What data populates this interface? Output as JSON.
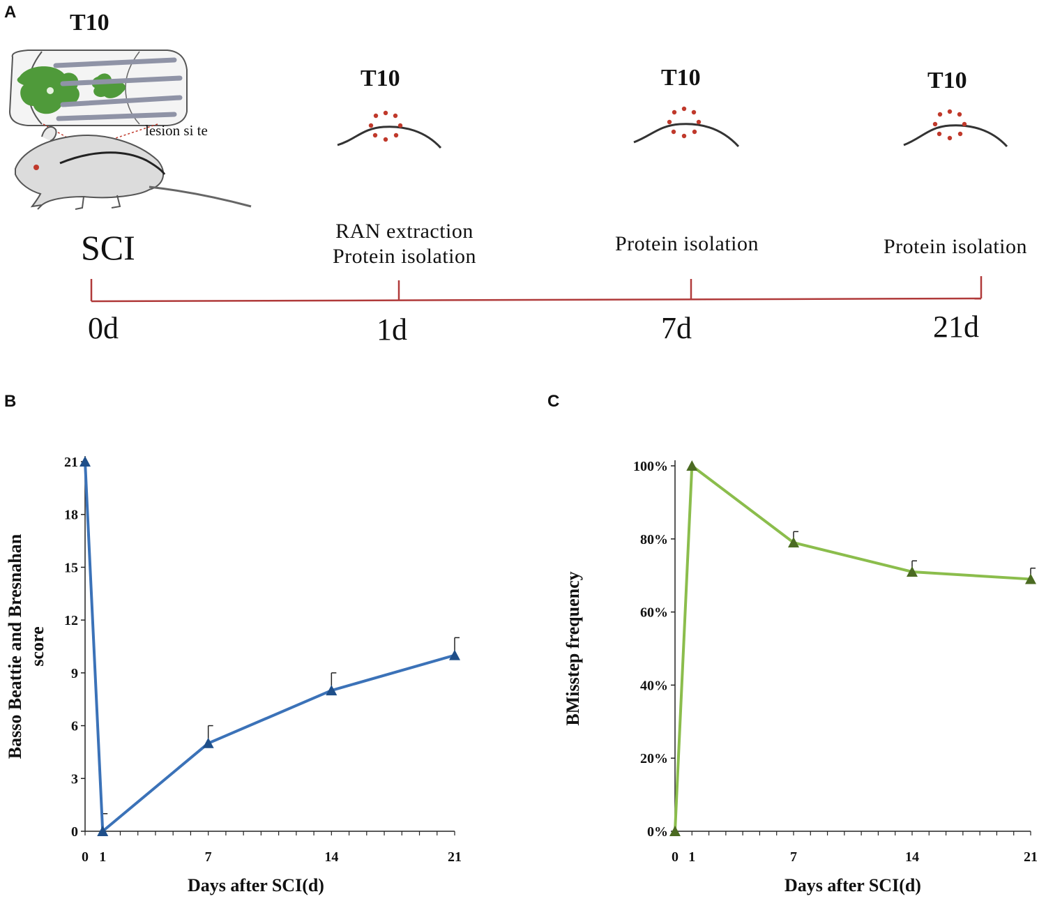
{
  "panels": {
    "a": "A",
    "b": "B",
    "c": "C"
  },
  "timeline": {
    "vertebra_label": "T10",
    "lesion_label": "lesion si te",
    "injury_label": "SCI",
    "steps": [
      {
        "day": "0d"
      },
      {
        "day": "1d",
        "line1": "RAN extraction",
        "line2": "Protein isolation"
      },
      {
        "day": "7d",
        "line1": "Protein isolation"
      },
      {
        "day": "21d",
        "line1": "Protein isolation"
      }
    ]
  },
  "colors": {
    "timeline": "#b03a3a",
    "lesion_dots": "#c0392b",
    "tissue": "#4f9a3a",
    "series_b": "#3b72b8",
    "marker_b": "#1f4f8a",
    "series_c": "#8bbd4c",
    "marker_c": "#4b6b22"
  },
  "chart_data": [
    {
      "type": "line",
      "title": "",
      "xlabel": "Days after SCI(d)",
      "ylabel_lines": [
        "Basso Beattie and Bresnahan",
        "score"
      ],
      "x": [
        0,
        1,
        7,
        14,
        21
      ],
      "xticks": [
        "0",
        "1",
        "7",
        "14",
        "21"
      ],
      "yticks": [
        "0",
        "3",
        "6",
        "9",
        "12",
        "15",
        "18",
        "21"
      ],
      "xlim": [
        0,
        21
      ],
      "ylim": [
        0,
        21
      ],
      "series": [
        {
          "name": "BBB score",
          "values": [
            21,
            0,
            5,
            8,
            10
          ],
          "error": [
            0,
            1,
            1,
            1,
            1
          ]
        }
      ]
    },
    {
      "type": "line",
      "title": "",
      "xlabel": "Days after SCI(d)",
      "ylabel_lines": [
        "BMisstep frequency"
      ],
      "x": [
        0,
        1,
        7,
        14,
        21
      ],
      "xticks": [
        "0",
        "1",
        "7",
        "14",
        "21"
      ],
      "yticks": [
        "0%",
        "20%",
        "40%",
        "60%",
        "80%",
        "100%"
      ],
      "xlim": [
        0,
        21
      ],
      "ylim": [
        0,
        100
      ],
      "series": [
        {
          "name": "Misstep frequency",
          "values": [
            0,
            100,
            79,
            71,
            69
          ],
          "error": [
            0,
            0,
            3,
            3,
            3
          ]
        }
      ]
    }
  ]
}
